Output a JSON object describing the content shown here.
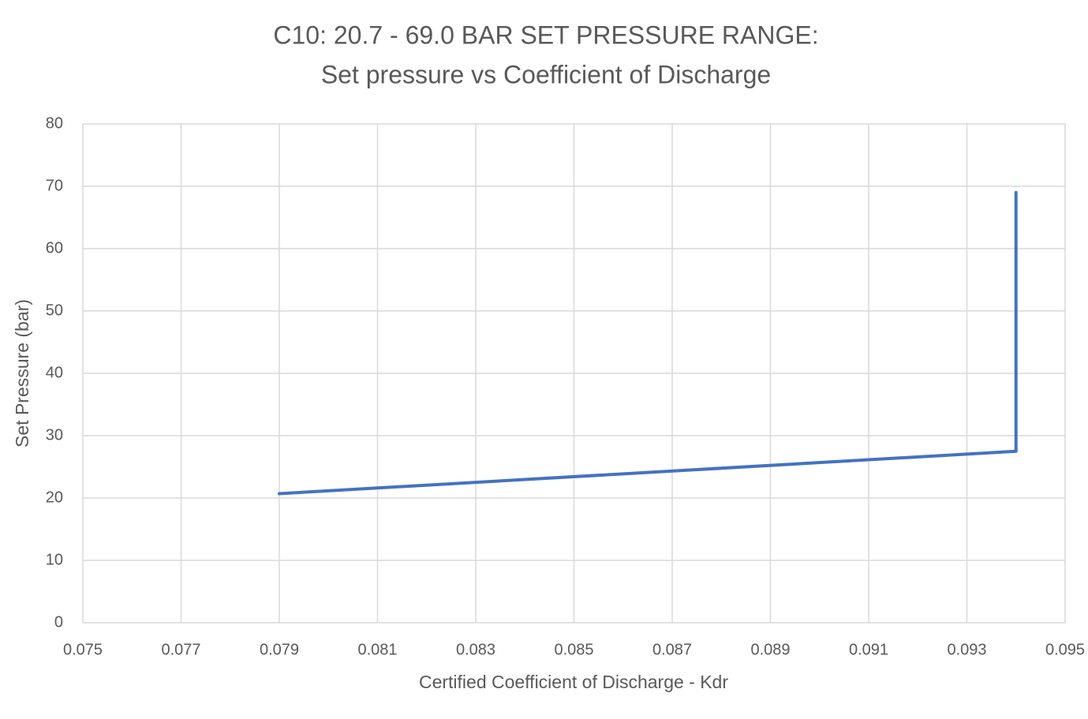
{
  "chart_data": {
    "type": "line",
    "title": "C10: 20.7 - 69.0 BAR SET PRESSURE RANGE:",
    "subtitle": "Set pressure vs Coefficient of Discharge",
    "x_label": "Certified Coefficient of Discharge - Kdr",
    "y_label": "Set Pressure (bar)",
    "x": [
      0.079,
      0.094,
      0.094
    ],
    "values": [
      20.7,
      27.5,
      69.0
    ],
    "color": "#4472c4",
    "xlim": [
      0.075,
      0.095
    ],
    "xticks": [
      0.075,
      0.077,
      0.079,
      0.081,
      0.083,
      0.085,
      0.087,
      0.089,
      0.091,
      0.093,
      0.095
    ],
    "ylim": [
      0,
      80
    ],
    "yticks": [
      0,
      10,
      20,
      30,
      40,
      50,
      60,
      70,
      80
    ],
    "grid": true
  }
}
